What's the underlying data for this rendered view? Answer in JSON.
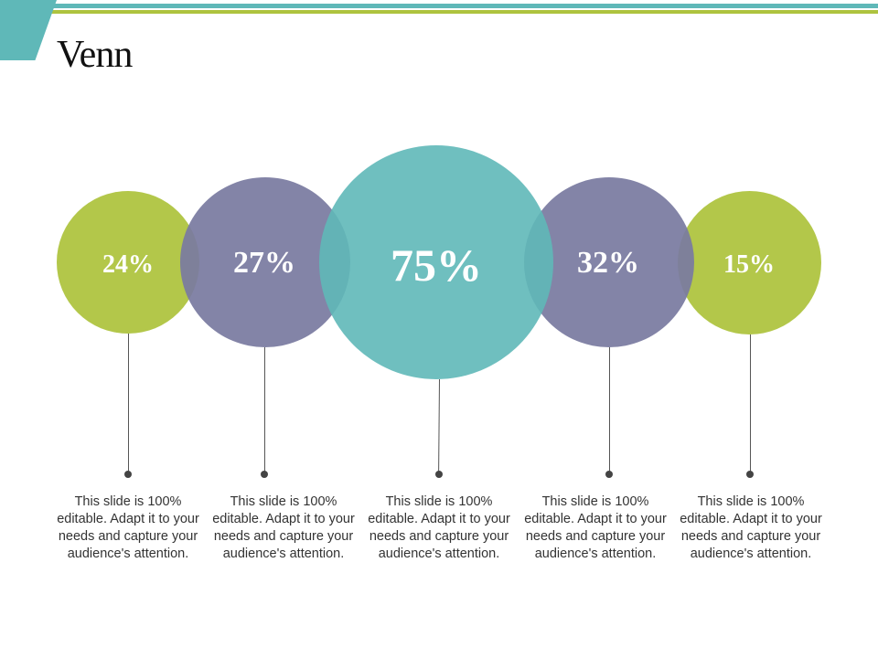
{
  "title": "Venn",
  "colors": {
    "teal": "#5fb8b8",
    "purple": "#7a7ba0",
    "green": "#aec33f"
  },
  "items": [
    {
      "value": "24%",
      "color": "#aec33f",
      "description": "This slide is 100% editable. Adapt it to your needs and capture your audience's attention."
    },
    {
      "value": "27%",
      "color": "#7a7ba0",
      "description": "This slide is 100% editable. Adapt it to your needs and capture your audience's attention."
    },
    {
      "value": "75%",
      "color": "#5fb8b8",
      "description": "This slide is 100% editable. Adapt it to your needs and capture your audience's attention."
    },
    {
      "value": "32%",
      "color": "#7a7ba0",
      "description": "This slide is 100% editable. Adapt it to your needs and capture your audience's attention."
    },
    {
      "value": "15%",
      "color": "#aec33f",
      "description": "This slide is 100% editable. Adapt it to your needs and capture your audience's attention."
    }
  ]
}
